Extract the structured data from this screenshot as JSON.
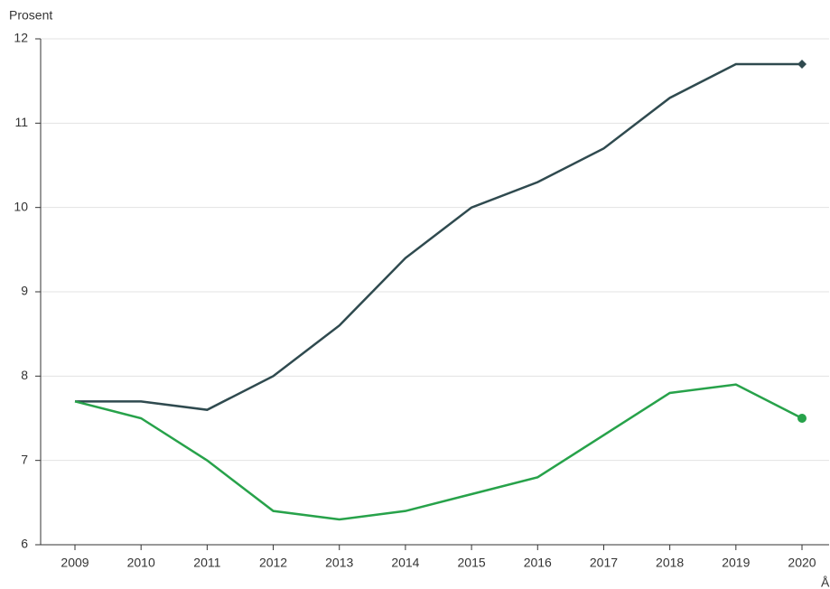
{
  "chart_data": {
    "type": "line",
    "y_label": "Prosent",
    "x_label": "År",
    "categories": [
      "2009",
      "2010",
      "2011",
      "2012",
      "2013",
      "2014",
      "2015",
      "2016",
      "2017",
      "2018",
      "2019",
      "2020"
    ],
    "series": [
      {
        "color": "#2f4a4f",
        "marker": "diamond",
        "values": [
          7.7,
          7.7,
          7.6,
          8.0,
          8.6,
          9.4,
          10.0,
          10.3,
          10.7,
          11.3,
          11.7,
          11.7
        ]
      },
      {
        "color": "#27a24a",
        "marker": "circle",
        "values": [
          7.7,
          7.5,
          7.0,
          6.4,
          6.3,
          6.4,
          6.6,
          6.8,
          7.3,
          7.8,
          7.9,
          7.5
        ]
      }
    ],
    "ylim": [
      6,
      12
    ],
    "yticks": [
      6,
      7,
      8,
      9,
      10,
      11,
      12
    ],
    "grid": true
  }
}
